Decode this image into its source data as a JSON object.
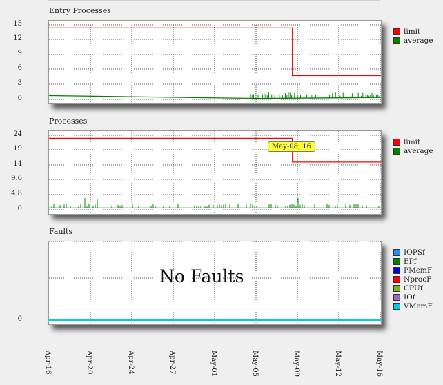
{
  "chart_data": [
    {
      "type": "line",
      "title": "Entry Processes",
      "yticks": [
        "15",
        "12",
        "9",
        "6",
        "3",
        "0"
      ],
      "ylim": [
        0,
        16.5
      ],
      "grid": true,
      "legend_placement": "right",
      "series": [
        {
          "name": "limit",
          "color": "#ff0000",
          "points": [
            [
              "Apr-16",
              15
            ],
            [
              "May-08",
              15
            ],
            [
              "May-08",
              5
            ],
            [
              "May-16",
              5
            ]
          ]
        },
        {
          "name": "average",
          "color": "#008000",
          "points": [
            [
              "Apr-16",
              0.8
            ],
            [
              "May-05",
              0.2
            ],
            [
              "May-16",
              0.4
            ]
          ],
          "note_spikes_from": "May-05"
        }
      ]
    },
    {
      "type": "line",
      "title": "Processes",
      "yticks": [
        "24",
        "19",
        "14",
        "9.6",
        "4.8",
        "0"
      ],
      "ylim": [
        0,
        26.4
      ],
      "grid": true,
      "legend_placement": "right",
      "tooltip": "May-08, 16",
      "series": [
        {
          "name": "limit",
          "color": "#ff0000",
          "points": [
            [
              "Apr-16",
              24
            ],
            [
              "May-08",
              24
            ],
            [
              "May-08",
              16
            ],
            [
              "May-16",
              16
            ]
          ]
        },
        {
          "name": "average",
          "color": "#008000",
          "points": [
            [
              "Apr-16",
              0.6
            ],
            [
              "May-16",
              0.6
            ]
          ]
        }
      ]
    },
    {
      "type": "line",
      "title": "Faults",
      "yticks": [
        "0"
      ],
      "ylim": [
        0,
        1
      ],
      "grid": true,
      "legend_placement": "right",
      "empty_text": "No Faults",
      "series": [
        {
          "name": "IOPSf",
          "color": "#1e90ff"
        },
        {
          "name": "EPf",
          "color": "#008000"
        },
        {
          "name": "PMemF",
          "color": "#0000cc"
        },
        {
          "name": "NprocF",
          "color": "#ff0000"
        },
        {
          "name": "CPUf",
          "color": "#80b020"
        },
        {
          "name": "IOf",
          "color": "#9966cc"
        },
        {
          "name": "VMemF",
          "color": "#00ccee"
        }
      ]
    }
  ],
  "x_axis": {
    "ticks": [
      "Apr-16",
      "Apr-20",
      "Apr-24",
      "Apr-27",
      "May-01",
      "May-05",
      "May-09",
      "May-12",
      "May-16"
    ]
  }
}
